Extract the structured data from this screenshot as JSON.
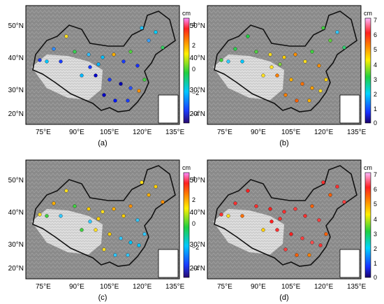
{
  "figure": {
    "colorbar_unit": "cm",
    "x_ticks": [
      "75°E",
      "90°E",
      "105°E",
      "120°E",
      "135°E"
    ],
    "y_ticks": [
      "50°N",
      "40°N",
      "30°N",
      "20°N"
    ],
    "panels": [
      {
        "id": "a",
        "label": "(a)",
        "colorbar_ticks": [
          "4",
          "2",
          "0",
          "−2",
          "−4"
        ],
        "colorbar_range": [
          -5,
          5
        ],
        "colormap": "rainbow-diverging"
      },
      {
        "id": "b",
        "label": "(b)",
        "colorbar_ticks": [
          "7",
          "6",
          "5",
          "4",
          "3",
          "2",
          "1",
          "0"
        ],
        "colorbar_range": [
          0,
          7
        ],
        "colormap": "rainbow-sequential"
      },
      {
        "id": "c",
        "label": "(c)",
        "colorbar_ticks": [
          "4",
          "2",
          "0",
          "−2",
          "−4"
        ],
        "colorbar_range": [
          -5,
          5
        ],
        "colormap": "rainbow-diverging"
      },
      {
        "id": "d",
        "label": "(d)",
        "colorbar_ticks": [
          "7",
          "6",
          "5",
          "4",
          "3",
          "2",
          "1",
          "0"
        ],
        "colorbar_range": [
          0,
          7
        ],
        "colormap": "rainbow-sequential"
      }
    ],
    "colors": {
      "map_background": "#8a8a8a",
      "tibet_plateau": "#d4d4d4",
      "border_line": "#111111",
      "station_outline": "#000000"
    }
  }
}
